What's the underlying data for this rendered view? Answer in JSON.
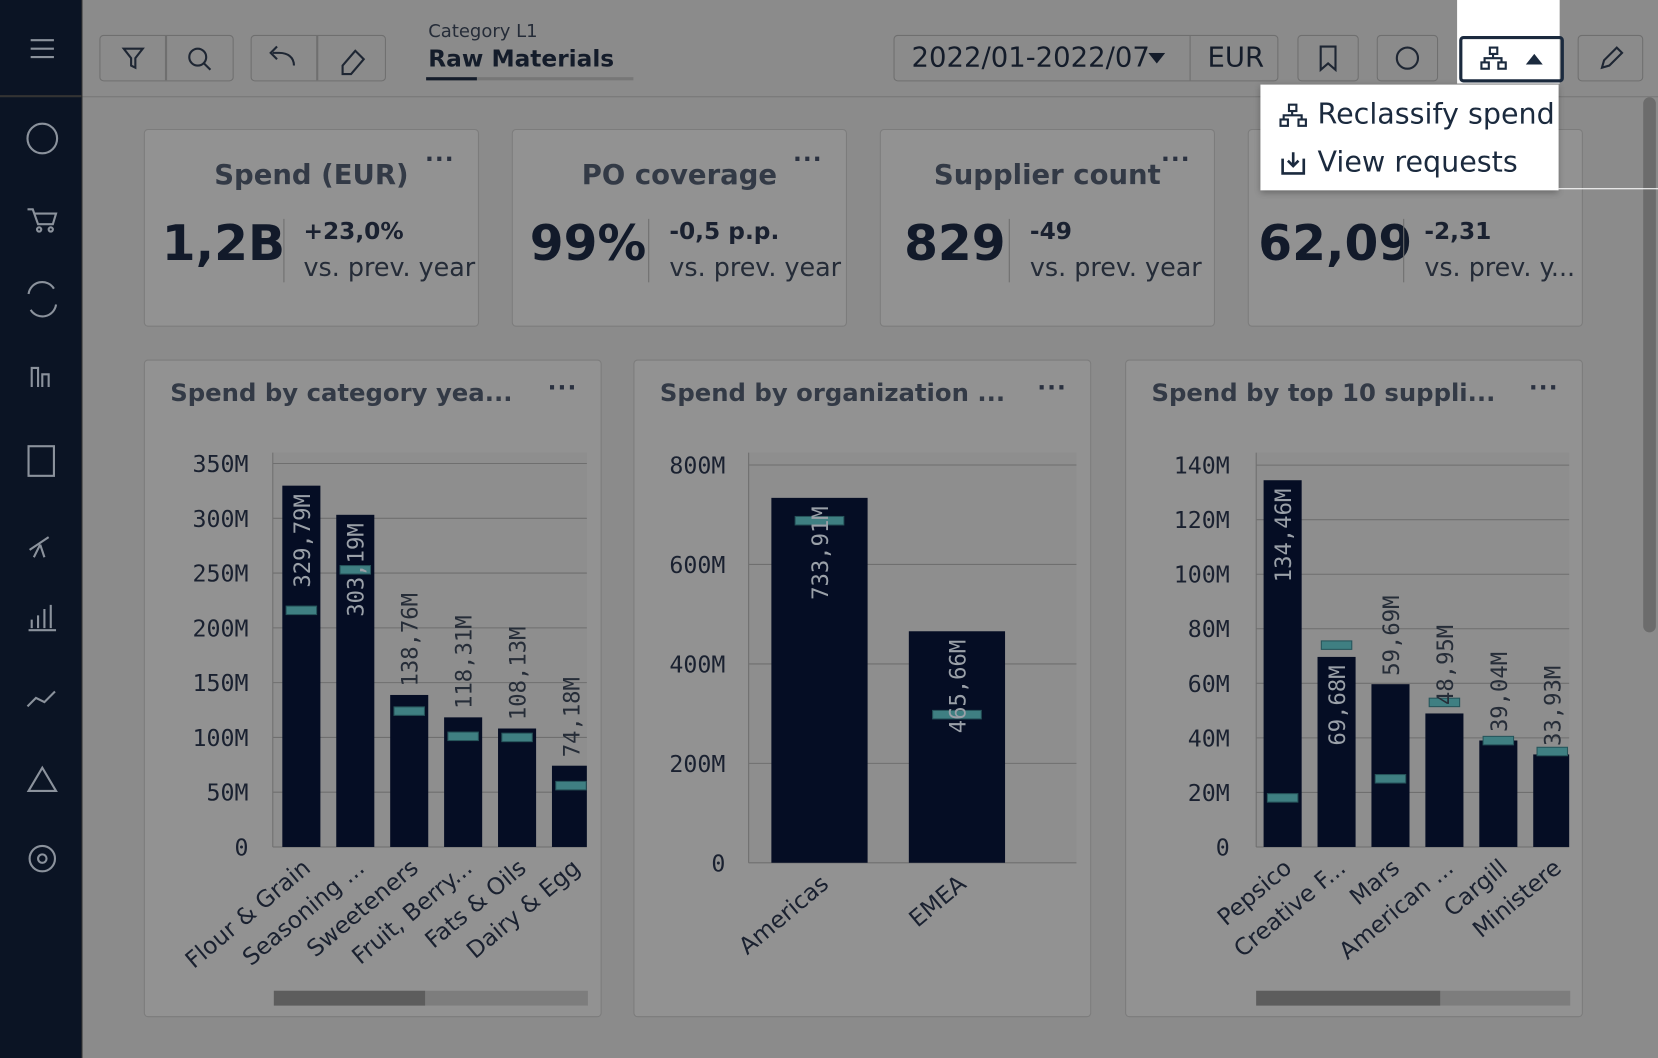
{
  "toolbar": {
    "category_label": "Category L1",
    "category_value": "Raw Materials",
    "period": "2022/01-2022/07",
    "currency": "EUR"
  },
  "menu": {
    "items": [
      "Reclassify spend",
      "View requests"
    ]
  },
  "kpis": [
    {
      "title": "Spend (EUR)",
      "value": "1,2B",
      "delta": "+23,0%",
      "comparison": "vs. prev. year"
    },
    {
      "title": "PO coverage",
      "value": "99%",
      "delta": "-0,5 p.p.",
      "comparison": "vs. prev. year"
    },
    {
      "title": "Supplier count",
      "value": "829",
      "delta": "-49",
      "comparison": "vs. prev. year"
    },
    {
      "value": "62,09",
      "delta": "-2,31",
      "comparison": "vs. prev. y..."
    }
  ],
  "charts": [
    {
      "type": "bar",
      "title": "Spend by category yea...",
      "color": "#050d24",
      "marker_color": "#3f7f82",
      "categories": [
        "Flour & Grain",
        "Seasoning ...",
        "Sweeteners",
        "Fruit, Berry...",
        "Fats & Oils",
        "Dairy & Egg"
      ],
      "values": [
        329.79,
        303.19,
        138.76,
        118.31,
        108.13,
        74.18
      ],
      "value_labels": [
        "329,79M",
        "303,19M",
        "138,76M",
        "118,31M",
        "108,13M",
        "74,18M"
      ],
      "markers": [
        216,
        253,
        124,
        101,
        100,
        56
      ],
      "ylim": [
        0,
        360
      ],
      "yticks": [
        {
          "value": 0,
          "label": "0"
        },
        {
          "value": 50,
          "label": "50M"
        },
        {
          "value": 100,
          "label": "100M"
        },
        {
          "value": 150,
          "label": "150M"
        },
        {
          "value": 200,
          "label": "200M"
        },
        {
          "value": 250,
          "label": "250M"
        },
        {
          "value": 300,
          "label": "300M"
        },
        {
          "value": 350,
          "label": "350M"
        }
      ]
    },
    {
      "type": "bar",
      "title": "Spend by organization ...",
      "color": "#050d24",
      "marker_color": "#3f7f82",
      "categories": [
        "Americas",
        "EMEA"
      ],
      "values": [
        733.91,
        465.66
      ],
      "value_labels": [
        "733,91M",
        "465,66M"
      ],
      "markers": [
        688,
        298
      ],
      "ylim": [
        0,
        825
      ],
      "yticks": [
        {
          "value": 0,
          "label": "0"
        },
        {
          "value": 200,
          "label": "200M"
        },
        {
          "value": 400,
          "label": "400M"
        },
        {
          "value": 600,
          "label": "600M"
        },
        {
          "value": 800,
          "label": "800M"
        }
      ]
    },
    {
      "type": "bar",
      "title": "Spend by top 10 suppli...",
      "color": "#050d24",
      "marker_color": "#3f7f82",
      "categories": [
        "Pepsico",
        "Creative F...",
        "Mars",
        "American ...",
        "Cargill",
        "Ministere"
      ],
      "values": [
        134.46,
        69.68,
        59.69,
        48.95,
        39.04,
        33.93
      ],
      "value_labels": [
        "134,46M",
        "69,68M",
        "59,69M",
        "48,95M",
        "39,04M",
        "33,93M"
      ],
      "markers": [
        18,
        74,
        25,
        53,
        39,
        35
      ],
      "ylim": [
        0,
        144.6
      ],
      "yticks": [
        {
          "value": 0,
          "label": "0"
        },
        {
          "value": 20,
          "label": "20M"
        },
        {
          "value": 40,
          "label": "40M"
        },
        {
          "value": 60,
          "label": "60M"
        },
        {
          "value": 80,
          "label": "80M"
        },
        {
          "value": 100,
          "label": "100M"
        },
        {
          "value": 120,
          "label": "120M"
        },
        {
          "value": 140,
          "label": "140M"
        }
      ]
    }
  ]
}
